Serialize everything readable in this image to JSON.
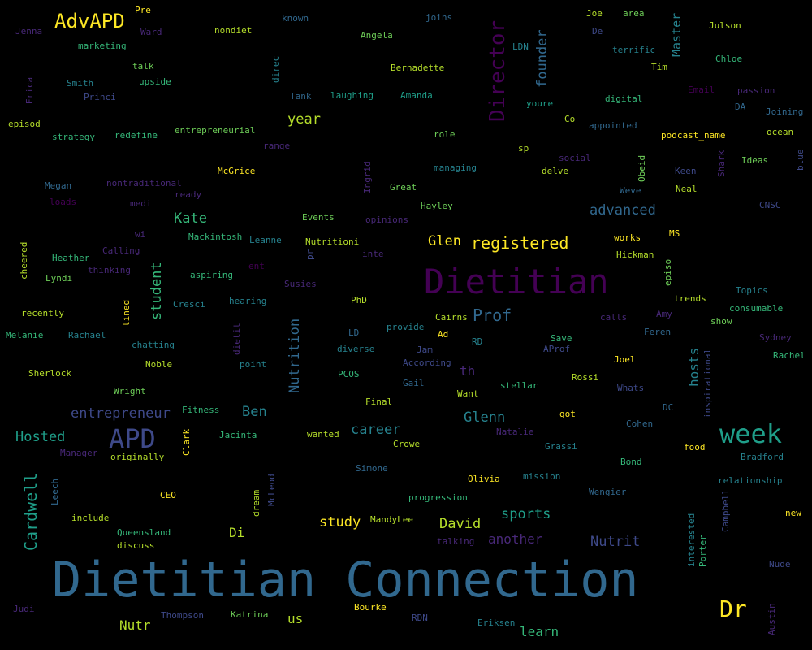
{
  "palette": {
    "background": "#000000",
    "dark_purple": "#440154",
    "purple": "#482878",
    "indigo": "#3e4989",
    "blue": "#31688e",
    "teal_blue": "#26828e",
    "teal": "#1f9e89",
    "green": "#35b779",
    "light_green": "#6ece58",
    "yellow_green": "#b5de2b",
    "yellow": "#fde725"
  },
  "words": [
    {
      "text": "Dietitian Connection",
      "color": "#31688e"
    },
    {
      "text": "Dietitian",
      "color": "#440154"
    },
    {
      "text": "APD",
      "color": "#3e4989"
    },
    {
      "text": "week",
      "color": "#1f9e89"
    },
    {
      "text": "Dr",
      "color": "#fde725"
    },
    {
      "text": "Director",
      "color": "#440154"
    },
    {
      "text": "AdvAPD",
      "color": "#fde725"
    },
    {
      "text": "Cardwell",
      "color": "#1f9e89"
    },
    {
      "text": "registered",
      "color": "#fde725"
    },
    {
      "text": "Prof",
      "color": "#31688e"
    },
    {
      "text": "advanced",
      "color": "#31688e"
    },
    {
      "text": "founder",
      "color": "#31688e"
    },
    {
      "text": "Kate",
      "color": "#35b779"
    },
    {
      "text": "Nutrition",
      "color": "#31688e"
    },
    {
      "text": "Glen",
      "color": "#fde725"
    },
    {
      "text": "student",
      "color": "#35b779"
    },
    {
      "text": "year",
      "color": "#b5de2b"
    },
    {
      "text": "entrepreneur",
      "color": "#3e4989"
    },
    {
      "text": "Hosted",
      "color": "#1f9e89"
    },
    {
      "text": "career",
      "color": "#26828e"
    },
    {
      "text": "Glenn",
      "color": "#26828e"
    },
    {
      "text": "Ben",
      "color": "#26828e"
    },
    {
      "text": "sports",
      "color": "#1f9e89"
    },
    {
      "text": "Nutrit",
      "color": "#3e4989"
    },
    {
      "text": "study",
      "color": "#fde725"
    },
    {
      "text": "David",
      "color": "#b5de2b"
    },
    {
      "text": "another",
      "color": "#482878"
    },
    {
      "text": "learn",
      "color": "#35b779"
    },
    {
      "text": "Nutr",
      "color": "#b5de2b"
    },
    {
      "text": "Di",
      "color": "#b5de2b"
    },
    {
      "text": "us",
      "color": "#b5de2b"
    },
    {
      "text": "hosts",
      "color": "#26828e"
    },
    {
      "text": "Master",
      "color": "#26828e"
    },
    {
      "text": "th",
      "color": "#482878"
    },
    {
      "text": "Pre",
      "color": "#fde725"
    },
    {
      "text": "Joe",
      "color": "#b5de2b"
    },
    {
      "text": "area",
      "color": "#6ece58"
    },
    {
      "text": "Jenna",
      "color": "#482878"
    },
    {
      "text": "Ward",
      "color": "#482878"
    },
    {
      "text": "nondiet",
      "color": "#b5de2b"
    },
    {
      "text": "known",
      "color": "#31688e"
    },
    {
      "text": "joins",
      "color": "#31688e"
    },
    {
      "text": "De",
      "color": "#3e4989"
    },
    {
      "text": "Julson",
      "color": "#b5de2b"
    },
    {
      "text": "marketing",
      "color": "#35b779"
    },
    {
      "text": "Angela",
      "color": "#6ece58"
    },
    {
      "text": "LDN",
      "color": "#26828e"
    },
    {
      "text": "terrific",
      "color": "#26828e"
    },
    {
      "text": "talk",
      "color": "#6ece58"
    },
    {
      "text": "Bernadette",
      "color": "#b5de2b"
    },
    {
      "text": "Tim",
      "color": "#b5de2b"
    },
    {
      "text": "Chloe",
      "color": "#35b779"
    },
    {
      "text": "Erica",
      "color": "#482878"
    },
    {
      "text": "Smith",
      "color": "#26828e"
    },
    {
      "text": "upside",
      "color": "#35b779"
    },
    {
      "text": "direc",
      "color": "#26828e"
    },
    {
      "text": "Princi",
      "color": "#3e4989"
    },
    {
      "text": "Tank",
      "color": "#31688e"
    },
    {
      "text": "laughing",
      "color": "#1f9e89"
    },
    {
      "text": "Amanda",
      "color": "#1f9e89"
    },
    {
      "text": "Email",
      "color": "#440154"
    },
    {
      "text": "passion",
      "color": "#482878"
    },
    {
      "text": "youre",
      "color": "#1f9e89"
    },
    {
      "text": "digital",
      "color": "#35b779"
    },
    {
      "text": "DA",
      "color": "#31688e"
    },
    {
      "text": "Joining",
      "color": "#31688e"
    },
    {
      "text": "episod",
      "color": "#b5de2b"
    },
    {
      "text": "strategy",
      "color": "#35b779"
    },
    {
      "text": "redefine",
      "color": "#35b779"
    },
    {
      "text": "entrepreneurial",
      "color": "#6ece58"
    },
    {
      "text": "role",
      "color": "#6ece58"
    },
    {
      "text": "Co",
      "color": "#b5de2b"
    },
    {
      "text": "appointed",
      "color": "#31688e"
    },
    {
      "text": "podcast_name",
      "color": "#fde725"
    },
    {
      "text": "ocean",
      "color": "#b5de2b"
    },
    {
      "text": "range",
      "color": "#482878"
    },
    {
      "text": "sp",
      "color": "#b5de2b"
    },
    {
      "text": "social",
      "color": "#482878"
    },
    {
      "text": "Obeid",
      "color": "#6ece58"
    },
    {
      "text": "Shark",
      "color": "#482878"
    },
    {
      "text": "Ideas",
      "color": "#6ece58"
    },
    {
      "text": "blue",
      "color": "#3e4989"
    },
    {
      "text": "McGrice",
      "color": "#fde725"
    },
    {
      "text": "managing",
      "color": "#26828e"
    },
    {
      "text": "delve",
      "color": "#b5de2b"
    },
    {
      "text": "Keen",
      "color": "#3e4989"
    },
    {
      "text": "Megan",
      "color": "#31688e"
    },
    {
      "text": "nontraditional",
      "color": "#482878"
    },
    {
      "text": "ready",
      "color": "#482878"
    },
    {
      "text": "Ingrid",
      "color": "#482878"
    },
    {
      "text": "Great",
      "color": "#6ece58"
    },
    {
      "text": "Weve",
      "color": "#31688e"
    },
    {
      "text": "Neal",
      "color": "#b5de2b"
    },
    {
      "text": "loads",
      "color": "#440154"
    },
    {
      "text": "medi",
      "color": "#482878"
    },
    {
      "text": "Hayley",
      "color": "#6ece58"
    },
    {
      "text": "CNSC",
      "color": "#3e4989"
    },
    {
      "text": "Events",
      "color": "#6ece58"
    },
    {
      "text": "opinions",
      "color": "#482878"
    },
    {
      "text": "wi",
      "color": "#482878"
    },
    {
      "text": "Mackintosh",
      "color": "#35b779"
    },
    {
      "text": "Leanne",
      "color": "#26828e"
    },
    {
      "text": "Nutritioni",
      "color": "#b5de2b"
    },
    {
      "text": "works",
      "color": "#fde725"
    },
    {
      "text": "MS",
      "color": "#fde725"
    },
    {
      "text": "Calling",
      "color": "#482878"
    },
    {
      "text": "cheered",
      "color": "#b5de2b"
    },
    {
      "text": "Heather",
      "color": "#35b779"
    },
    {
      "text": "ent",
      "color": "#440154"
    },
    {
      "text": "pr",
      "color": "#3e4989"
    },
    {
      "text": "inte",
      "color": "#482878"
    },
    {
      "text": "Hickman",
      "color": "#b5de2b"
    },
    {
      "text": "episo",
      "color": "#6ece58"
    },
    {
      "text": "thinking",
      "color": "#482878"
    },
    {
      "text": "aspiring",
      "color": "#35b779"
    },
    {
      "text": "Lyndi",
      "color": "#6ece58"
    },
    {
      "text": "Susies",
      "color": "#482878"
    },
    {
      "text": "Topics",
      "color": "#26828e"
    },
    {
      "text": "hearing",
      "color": "#26828e"
    },
    {
      "text": "PhD",
      "color": "#b5de2b"
    },
    {
      "text": "trends",
      "color": "#b5de2b"
    },
    {
      "text": "consumable",
      "color": "#35b779"
    },
    {
      "text": "lined",
      "color": "#fde725"
    },
    {
      "text": "Cresci",
      "color": "#26828e"
    },
    {
      "text": "Cairns",
      "color": "#b5de2b"
    },
    {
      "text": "Amy",
      "color": "#482878"
    },
    {
      "text": "recently",
      "color": "#b5de2b"
    },
    {
      "text": "calls",
      "color": "#482878"
    },
    {
      "text": "show",
      "color": "#6ece58"
    },
    {
      "text": "Melanie",
      "color": "#35b779"
    },
    {
      "text": "Rachael",
      "color": "#26828e"
    },
    {
      "text": "dietit",
      "color": "#482878"
    },
    {
      "text": "LD",
      "color": "#31688e"
    },
    {
      "text": "provide",
      "color": "#26828e"
    },
    {
      "text": "Ad",
      "color": "#fde725"
    },
    {
      "text": "Feren",
      "color": "#31688e"
    },
    {
      "text": "Sydney",
      "color": "#482878"
    },
    {
      "text": "chatting",
      "color": "#26828e"
    },
    {
      "text": "diverse",
      "color": "#26828e"
    },
    {
      "text": "Jam",
      "color": "#3e4989"
    },
    {
      "text": "RD",
      "color": "#26828e"
    },
    {
      "text": "Save",
      "color": "#35b779"
    },
    {
      "text": "AProf",
      "color": "#3e4989"
    },
    {
      "text": "Rachel",
      "color": "#35b779"
    },
    {
      "text": "Noble",
      "color": "#b5de2b"
    },
    {
      "text": "point",
      "color": "#26828e"
    },
    {
      "text": "According",
      "color": "#3e4989"
    },
    {
      "text": "Joel",
      "color": "#fde725"
    },
    {
      "text": "Sherlock",
      "color": "#b5de2b"
    },
    {
      "text": "PCOS",
      "color": "#35b779"
    },
    {
      "text": "Gail",
      "color": "#31688e"
    },
    {
      "text": "Rossi",
      "color": "#b5de2b"
    },
    {
      "text": "inspirational",
      "color": "#3e4989"
    },
    {
      "text": "Wright",
      "color": "#6ece58"
    },
    {
      "text": "Want",
      "color": "#b5de2b"
    },
    {
      "text": "stellar",
      "color": "#35b779"
    },
    {
      "text": "Whats",
      "color": "#3e4989"
    },
    {
      "text": "Final",
      "color": "#b5de2b"
    },
    {
      "text": "DC",
      "color": "#31688e"
    },
    {
      "text": "Fitness",
      "color": "#35b779"
    },
    {
      "text": "got",
      "color": "#fde725"
    },
    {
      "text": "Cohen",
      "color": "#31688e"
    },
    {
      "text": "Clark",
      "color": "#fde725"
    },
    {
      "text": "Jacinta",
      "color": "#35b779"
    },
    {
      "text": "wanted",
      "color": "#b5de2b"
    },
    {
      "text": "Natalie",
      "color": "#482878"
    },
    {
      "text": "food",
      "color": "#fde725"
    },
    {
      "text": "Manager",
      "color": "#482878"
    },
    {
      "text": "originally",
      "color": "#b5de2b"
    },
    {
      "text": "Crowe",
      "color": "#b5de2b"
    },
    {
      "text": "Grassi",
      "color": "#26828e"
    },
    {
      "text": "Bradford",
      "color": "#26828e"
    },
    {
      "text": "Simone",
      "color": "#31688e"
    },
    {
      "text": "Bond",
      "color": "#35b779"
    },
    {
      "text": "McLeod",
      "color": "#3e4989"
    },
    {
      "text": "Leech",
      "color": "#31688e"
    },
    {
      "text": "dream",
      "color": "#b5de2b"
    },
    {
      "text": "Olivia",
      "color": "#fde725"
    },
    {
      "text": "mission",
      "color": "#26828e"
    },
    {
      "text": "relationship",
      "color": "#26828e"
    },
    {
      "text": "CEO",
      "color": "#fde725"
    },
    {
      "text": "progression",
      "color": "#35b779"
    },
    {
      "text": "Wengier",
      "color": "#31688e"
    },
    {
      "text": "Campbell",
      "color": "#3e4989"
    },
    {
      "text": "include",
      "color": "#b5de2b"
    },
    {
      "text": "MandyLee",
      "color": "#b5de2b"
    },
    {
      "text": "new",
      "color": "#fde725"
    },
    {
      "text": "Queensland",
      "color": "#35b779"
    },
    {
      "text": "interested",
      "color": "#26828e"
    },
    {
      "text": "Porter",
      "color": "#35b779"
    },
    {
      "text": "discuss",
      "color": "#b5de2b"
    },
    {
      "text": "talking",
      "color": "#482878"
    },
    {
      "text": "Nude",
      "color": "#3e4989"
    },
    {
      "text": "Judi",
      "color": "#482878"
    },
    {
      "text": "Bourke",
      "color": "#fde725"
    },
    {
      "text": "Thompson",
      "color": "#3e4989"
    },
    {
      "text": "Katrina",
      "color": "#6ece58"
    },
    {
      "text": "RDN",
      "color": "#3e4989"
    },
    {
      "text": "Eriksen",
      "color": "#26828e"
    },
    {
      "text": "Austin",
      "color": "#482878"
    }
  ]
}
